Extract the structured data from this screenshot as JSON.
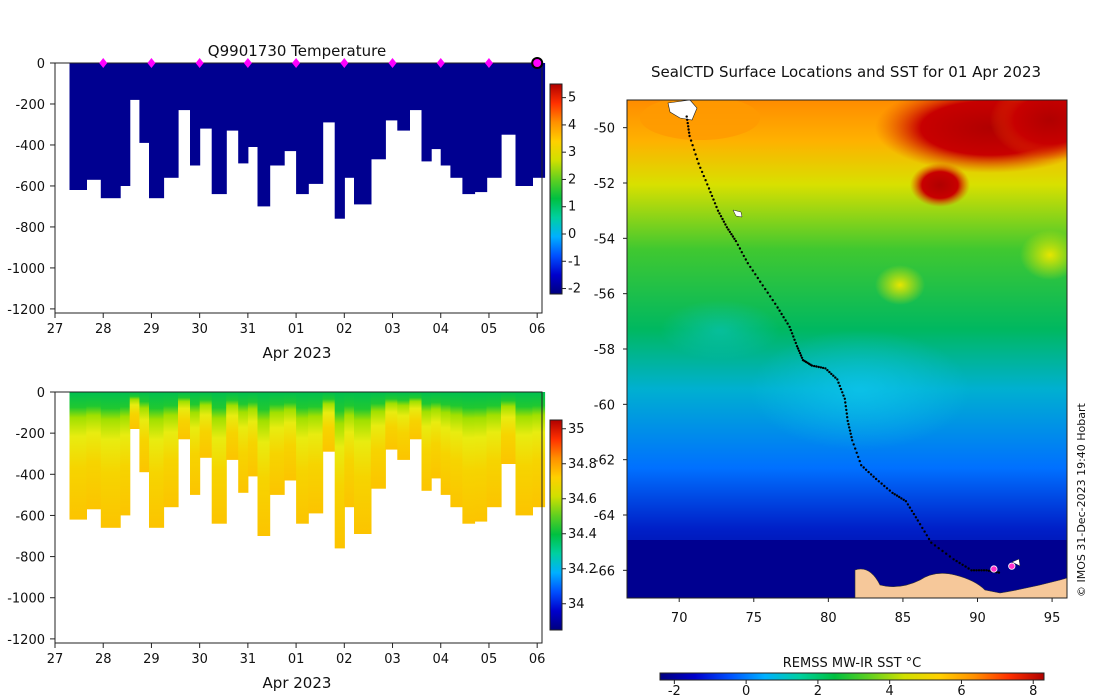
{
  "chart_data": [
    {
      "type": "heatmap",
      "id": "temperature",
      "title": "Q9901730  Temperature",
      "x_ticks": [
        "27",
        "28",
        "29",
        "30",
        "31",
        "01",
        "02",
        "03",
        "04",
        "05",
        "06"
      ],
      "xlabel": "Apr 2023",
      "y_ticks": [
        "0",
        "-200",
        "-400",
        "-600",
        "-800",
        "-1000",
        "-1200"
      ],
      "y_values": [
        0,
        -200,
        -400,
        -600,
        -800,
        -1000,
        -1200
      ],
      "ylim": [
        -1220,
        0
      ],
      "xlim": [
        27.0,
        37.1
      ],
      "profiles": [
        {
          "x": 27.3,
          "depth": 620
        },
        {
          "x": 27.65,
          "depth": 570
        },
        {
          "x": 27.95,
          "depth": 660
        },
        {
          "x": 28.35,
          "depth": 600
        },
        {
          "x": 28.55,
          "depth": 180
        },
        {
          "x": 28.75,
          "depth": 390
        },
        {
          "x": 28.95,
          "depth": 660
        },
        {
          "x": 29.25,
          "depth": 560
        },
        {
          "x": 29.55,
          "depth": 230
        },
        {
          "x": 29.8,
          "depth": 500
        },
        {
          "x": 30.0,
          "depth": 320
        },
        {
          "x": 30.25,
          "depth": 640
        },
        {
          "x": 30.55,
          "depth": 330
        },
        {
          "x": 30.8,
          "depth": 490
        },
        {
          "x": 31.0,
          "depth": 410
        },
        {
          "x": 31.2,
          "depth": 700
        },
        {
          "x": 31.45,
          "depth": 500
        },
        {
          "x": 31.75,
          "depth": 430
        },
        {
          "x": 32.0,
          "depth": 640
        },
        {
          "x": 32.25,
          "depth": 590
        },
        {
          "x": 32.55,
          "depth": 290
        },
        {
          "x": 32.8,
          "depth": 760
        },
        {
          "x": 33.0,
          "depth": 560
        },
        {
          "x": 33.2,
          "depth": 690
        },
        {
          "x": 33.55,
          "depth": 470
        },
        {
          "x": 33.85,
          "depth": 280
        },
        {
          "x": 34.1,
          "depth": 330
        },
        {
          "x": 34.35,
          "depth": 230
        },
        {
          "x": 34.6,
          "depth": 480
        },
        {
          "x": 34.8,
          "depth": 420
        },
        {
          "x": 35.0,
          "depth": 500
        },
        {
          "x": 35.2,
          "depth": 560
        },
        {
          "x": 35.45,
          "depth": 640
        },
        {
          "x": 35.7,
          "depth": 630
        },
        {
          "x": 35.95,
          "depth": 560
        },
        {
          "x": 36.25,
          "depth": 350
        },
        {
          "x": 36.55,
          "depth": 600
        },
        {
          "x": 36.9,
          "depth": 560
        }
      ],
      "surface_markers_x": [
        28,
        29,
        30,
        31,
        32,
        33,
        34,
        35,
        36,
        37
      ],
      "colorbar": {
        "ticks": [
          "5",
          "4",
          "3",
          "2",
          "1",
          "0",
          "-1",
          "-2"
        ],
        "values": [
          5,
          4,
          3,
          2,
          1,
          0,
          -1,
          -2
        ],
        "range": [
          -2.2,
          5.5
        ],
        "colors": [
          "#00007f",
          "#0000cc",
          "#0050ff",
          "#00b0ff",
          "#00d0a0",
          "#00c040",
          "#60d020",
          "#d0e000",
          "#ffd000",
          "#ff9000",
          "#ff3000",
          "#b00000"
        ]
      }
    },
    {
      "type": "heatmap",
      "id": "salinity",
      "x_ticks": [
        "27",
        "28",
        "29",
        "30",
        "31",
        "01",
        "02",
        "03",
        "04",
        "05",
        "06"
      ],
      "xlabel": "Apr 2023",
      "y_ticks": [
        "0",
        "-200",
        "-400",
        "-600",
        "-800",
        "-1000",
        "-1200"
      ],
      "y_values": [
        0,
        -200,
        -400,
        -600,
        -800,
        -1000,
        -1200
      ],
      "ylim": [
        -1220,
        0
      ],
      "xlim": [
        27.0,
        37.1
      ],
      "colorbar": {
        "ticks": [
          "35",
          "34.8",
          "34.6",
          "34.4",
          "34.2",
          "34"
        ],
        "values": [
          35,
          34.8,
          34.6,
          34.4,
          34.2,
          34.0
        ],
        "range": [
          33.85,
          35.05
        ],
        "colors": [
          "#00007f",
          "#0000cc",
          "#0050ff",
          "#00b0ff",
          "#00d0a0",
          "#00c040",
          "#60d020",
          "#d0e000",
          "#ffd000",
          "#ff9000",
          "#ff3000",
          "#b00000"
        ]
      }
    },
    {
      "type": "map",
      "id": "sst_map",
      "title": "SealCTD Surface Locations and SST for 01 Apr 2023",
      "x_ticks": [
        "70",
        "75",
        "80",
        "85",
        "90",
        "95"
      ],
      "x_values": [
        70,
        75,
        80,
        85,
        90,
        95
      ],
      "xlim": [
        66.5,
        96.0
      ],
      "y_ticks": [
        "-50",
        "-52",
        "-54",
        "-56",
        "-58",
        "-60",
        "-62",
        "-64",
        "-66"
      ],
      "y_values": [
        -50,
        -52,
        -54,
        -56,
        -58,
        -60,
        -62,
        -64,
        -66
      ],
      "ylim": [
        -67.0,
        -49.0
      ],
      "track_lon": [
        70.5,
        70.7,
        71.3,
        72.0,
        72.6,
        73.2,
        73.8,
        74.6,
        75.6,
        76.6,
        77.4,
        77.9,
        78.3,
        78.9,
        79.8,
        80.6,
        81.1,
        81.3,
        81.6,
        82.2,
        83.2,
        84.3,
        85.2,
        86.0,
        86.9,
        88.4,
        89.6,
        90.6,
        91.6
      ],
      "track_lat": [
        -49.6,
        -50.3,
        -51.3,
        -52.2,
        -53.0,
        -53.6,
        -54.1,
        -54.9,
        -55.7,
        -56.5,
        -57.2,
        -57.9,
        -58.4,
        -58.6,
        -58.7,
        -59.1,
        -59.8,
        -60.6,
        -61.3,
        -62.2,
        -62.7,
        -63.2,
        -63.5,
        -64.2,
        -65.0,
        -65.6,
        -66.0,
        -66.0,
        -66.1
      ],
      "markers_lon": [
        91.1,
        92.3
      ],
      "markers_lat": [
        -65.95,
        -65.85
      ],
      "colorbar": {
        "label": "REMSS MW-IR SST °C",
        "ticks": [
          "-2",
          "0",
          "2",
          "4",
          "6",
          "8"
        ],
        "values": [
          -2,
          0,
          2,
          4,
          6,
          8
        ],
        "range": [
          -2.4,
          8.3
        ],
        "colors": [
          "#00007f",
          "#0000cc",
          "#0050ff",
          "#00b0ff",
          "#00d0a0",
          "#00c040",
          "#60d020",
          "#d0e000",
          "#ffd000",
          "#ff9000",
          "#ff3000",
          "#b00000"
        ]
      }
    }
  ],
  "credit": "© IMOS 31-Dec-2023 19:40 Hobart"
}
